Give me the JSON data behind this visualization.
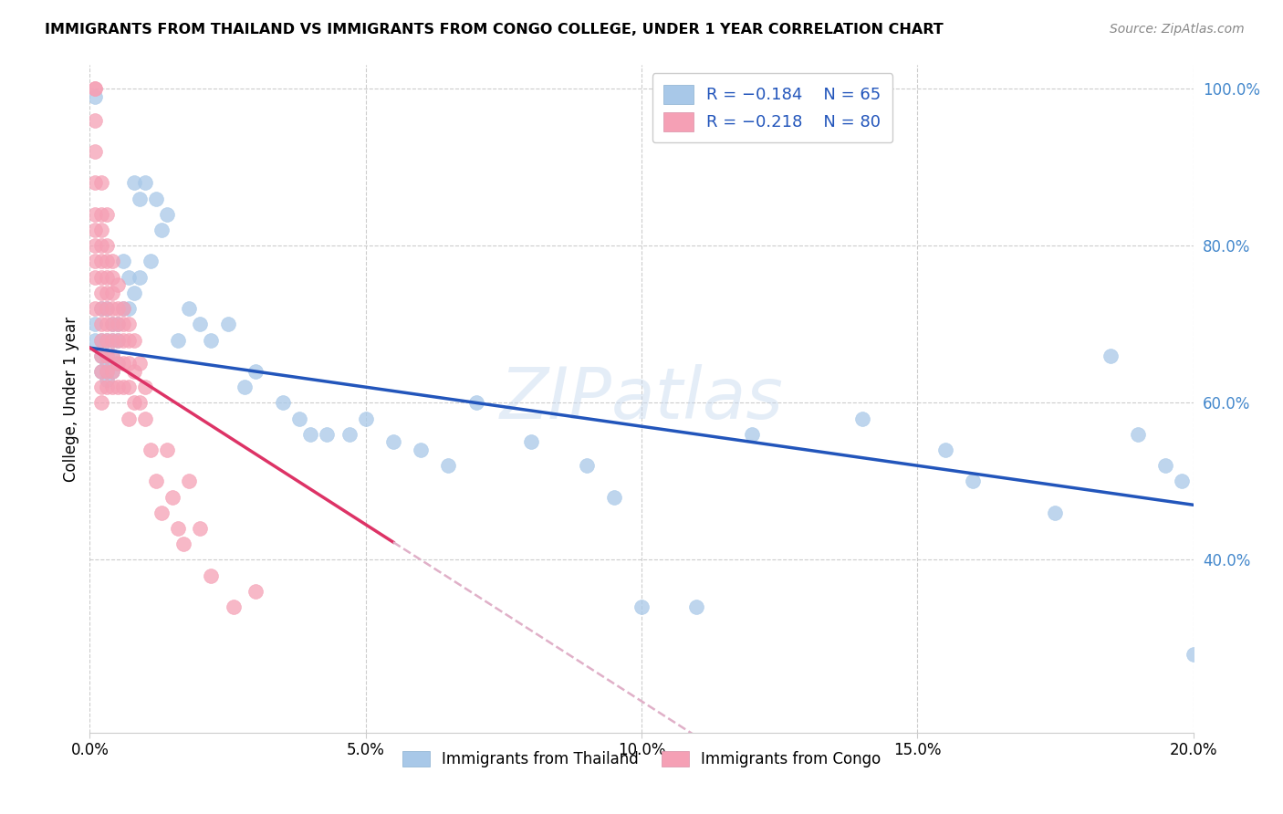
{
  "title": "IMMIGRANTS FROM THAILAND VS IMMIGRANTS FROM CONGO COLLEGE, UNDER 1 YEAR CORRELATION CHART",
  "source": "Source: ZipAtlas.com",
  "ylabel": "College, Under 1 year",
  "xlim": [
    0.0,
    0.2
  ],
  "ylim": [
    0.18,
    1.03
  ],
  "xticks": [
    0.0,
    0.05,
    0.1,
    0.15,
    0.2
  ],
  "yticks": [
    0.4,
    0.6,
    0.8,
    1.0
  ],
  "ytick_labels": [
    "40.0%",
    "60.0%",
    "80.0%",
    "100.0%"
  ],
  "xtick_labels": [
    "0.0%",
    "5.0%",
    "10.0%",
    "15.0%",
    "20.0%"
  ],
  "legend_r_thailand": "R = -0.184",
  "legend_n_thailand": "N = 65",
  "legend_r_congo": "R = -0.218",
  "legend_n_congo": "N = 80",
  "thailand_color": "#a8c8e8",
  "congo_color": "#f5a0b5",
  "thailand_line_color": "#2255bb",
  "congo_line_color": "#dd3366",
  "congo_dashed_color": "#e0b0c8",
  "watermark": "ZIPatlas",
  "thailand_line_x0": 0.0,
  "thailand_line_y0": 0.67,
  "thailand_line_x1": 0.2,
  "thailand_line_y1": 0.47,
  "congo_line_x0": 0.0,
  "congo_line_y0": 0.67,
  "congo_line_x1_solid": 0.055,
  "congo_line_x1_dashed": 0.145,
  "thailand_x": [
    0.001,
    0.001,
    0.001,
    0.002,
    0.002,
    0.002,
    0.002,
    0.003,
    0.003,
    0.003,
    0.003,
    0.003,
    0.003,
    0.004,
    0.004,
    0.004,
    0.004,
    0.005,
    0.005,
    0.005,
    0.006,
    0.006,
    0.007,
    0.007,
    0.008,
    0.008,
    0.009,
    0.009,
    0.01,
    0.011,
    0.012,
    0.013,
    0.014,
    0.016,
    0.018,
    0.02,
    0.022,
    0.025,
    0.028,
    0.03,
    0.035,
    0.038,
    0.04,
    0.043,
    0.047,
    0.05,
    0.055,
    0.06,
    0.065,
    0.07,
    0.08,
    0.09,
    0.095,
    0.1,
    0.11,
    0.12,
    0.14,
    0.155,
    0.16,
    0.175,
    0.185,
    0.19,
    0.195,
    0.198,
    0.2
  ],
  "thailand_y": [
    0.99,
    0.7,
    0.68,
    0.72,
    0.68,
    0.66,
    0.64,
    0.72,
    0.68,
    0.66,
    0.65,
    0.64,
    0.63,
    0.7,
    0.68,
    0.66,
    0.64,
    0.7,
    0.68,
    0.65,
    0.78,
    0.72,
    0.76,
    0.72,
    0.88,
    0.74,
    0.86,
    0.76,
    0.88,
    0.78,
    0.86,
    0.82,
    0.84,
    0.68,
    0.72,
    0.7,
    0.68,
    0.7,
    0.62,
    0.64,
    0.6,
    0.58,
    0.56,
    0.56,
    0.56,
    0.58,
    0.55,
    0.54,
    0.52,
    0.6,
    0.55,
    0.52,
    0.48,
    0.34,
    0.34,
    0.56,
    0.58,
    0.54,
    0.5,
    0.46,
    0.66,
    0.56,
    0.52,
    0.5,
    0.28
  ],
  "congo_x": [
    0.001,
    0.001,
    0.001,
    0.001,
    0.001,
    0.001,
    0.001,
    0.001,
    0.001,
    0.001,
    0.001,
    0.002,
    0.002,
    0.002,
    0.002,
    0.002,
    0.002,
    0.002,
    0.002,
    0.002,
    0.002,
    0.002,
    0.002,
    0.002,
    0.002,
    0.003,
    0.003,
    0.003,
    0.003,
    0.003,
    0.003,
    0.003,
    0.003,
    0.003,
    0.003,
    0.003,
    0.004,
    0.004,
    0.004,
    0.004,
    0.004,
    0.004,
    0.004,
    0.004,
    0.004,
    0.005,
    0.005,
    0.005,
    0.005,
    0.005,
    0.005,
    0.006,
    0.006,
    0.006,
    0.006,
    0.006,
    0.007,
    0.007,
    0.007,
    0.007,
    0.007,
    0.008,
    0.008,
    0.008,
    0.009,
    0.009,
    0.01,
    0.01,
    0.011,
    0.012,
    0.013,
    0.014,
    0.015,
    0.016,
    0.017,
    0.018,
    0.02,
    0.022,
    0.026,
    0.03
  ],
  "congo_y": [
    1.0,
    1.0,
    0.96,
    0.92,
    0.88,
    0.84,
    0.82,
    0.8,
    0.78,
    0.76,
    0.72,
    0.88,
    0.84,
    0.82,
    0.8,
    0.78,
    0.76,
    0.74,
    0.72,
    0.7,
    0.68,
    0.66,
    0.64,
    0.62,
    0.6,
    0.84,
    0.8,
    0.78,
    0.76,
    0.74,
    0.72,
    0.7,
    0.68,
    0.66,
    0.64,
    0.62,
    0.78,
    0.76,
    0.74,
    0.72,
    0.7,
    0.68,
    0.66,
    0.64,
    0.62,
    0.75,
    0.72,
    0.7,
    0.68,
    0.65,
    0.62,
    0.72,
    0.7,
    0.68,
    0.65,
    0.62,
    0.7,
    0.68,
    0.65,
    0.62,
    0.58,
    0.68,
    0.64,
    0.6,
    0.65,
    0.6,
    0.62,
    0.58,
    0.54,
    0.5,
    0.46,
    0.54,
    0.48,
    0.44,
    0.42,
    0.5,
    0.44,
    0.38,
    0.34,
    0.36
  ]
}
